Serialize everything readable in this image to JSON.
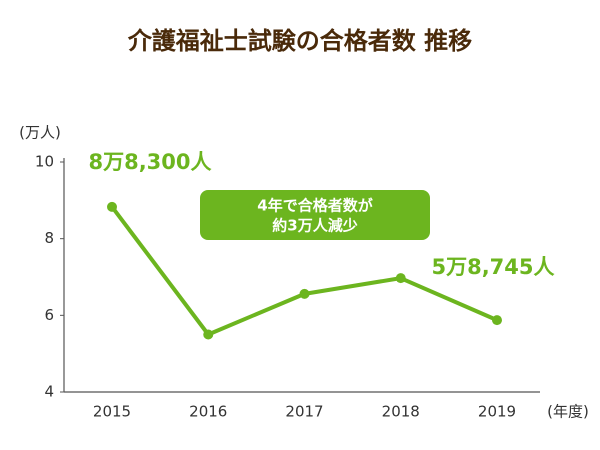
{
  "chart_data": {
    "type": "line",
    "title": "介護福祉士試験の合格者数 推移",
    "y_axis_label": "(万人)",
    "x_axis_label": "(年度)",
    "categories": [
      "2015",
      "2016",
      "2017",
      "2018",
      "2019"
    ],
    "values": [
      8.83,
      5.5,
      6.56,
      6.97,
      5.8745
    ],
    "value_labels": [
      "8万8,300人",
      null,
      null,
      null,
      "5万8,745人"
    ],
    "color": "#6cb51f",
    "ylim": [
      4,
      10
    ],
    "yticks": [
      4,
      6,
      8,
      10
    ],
    "grid": false,
    "annotation": [
      "4年で合格者数が",
      "約3万人減少"
    ]
  }
}
